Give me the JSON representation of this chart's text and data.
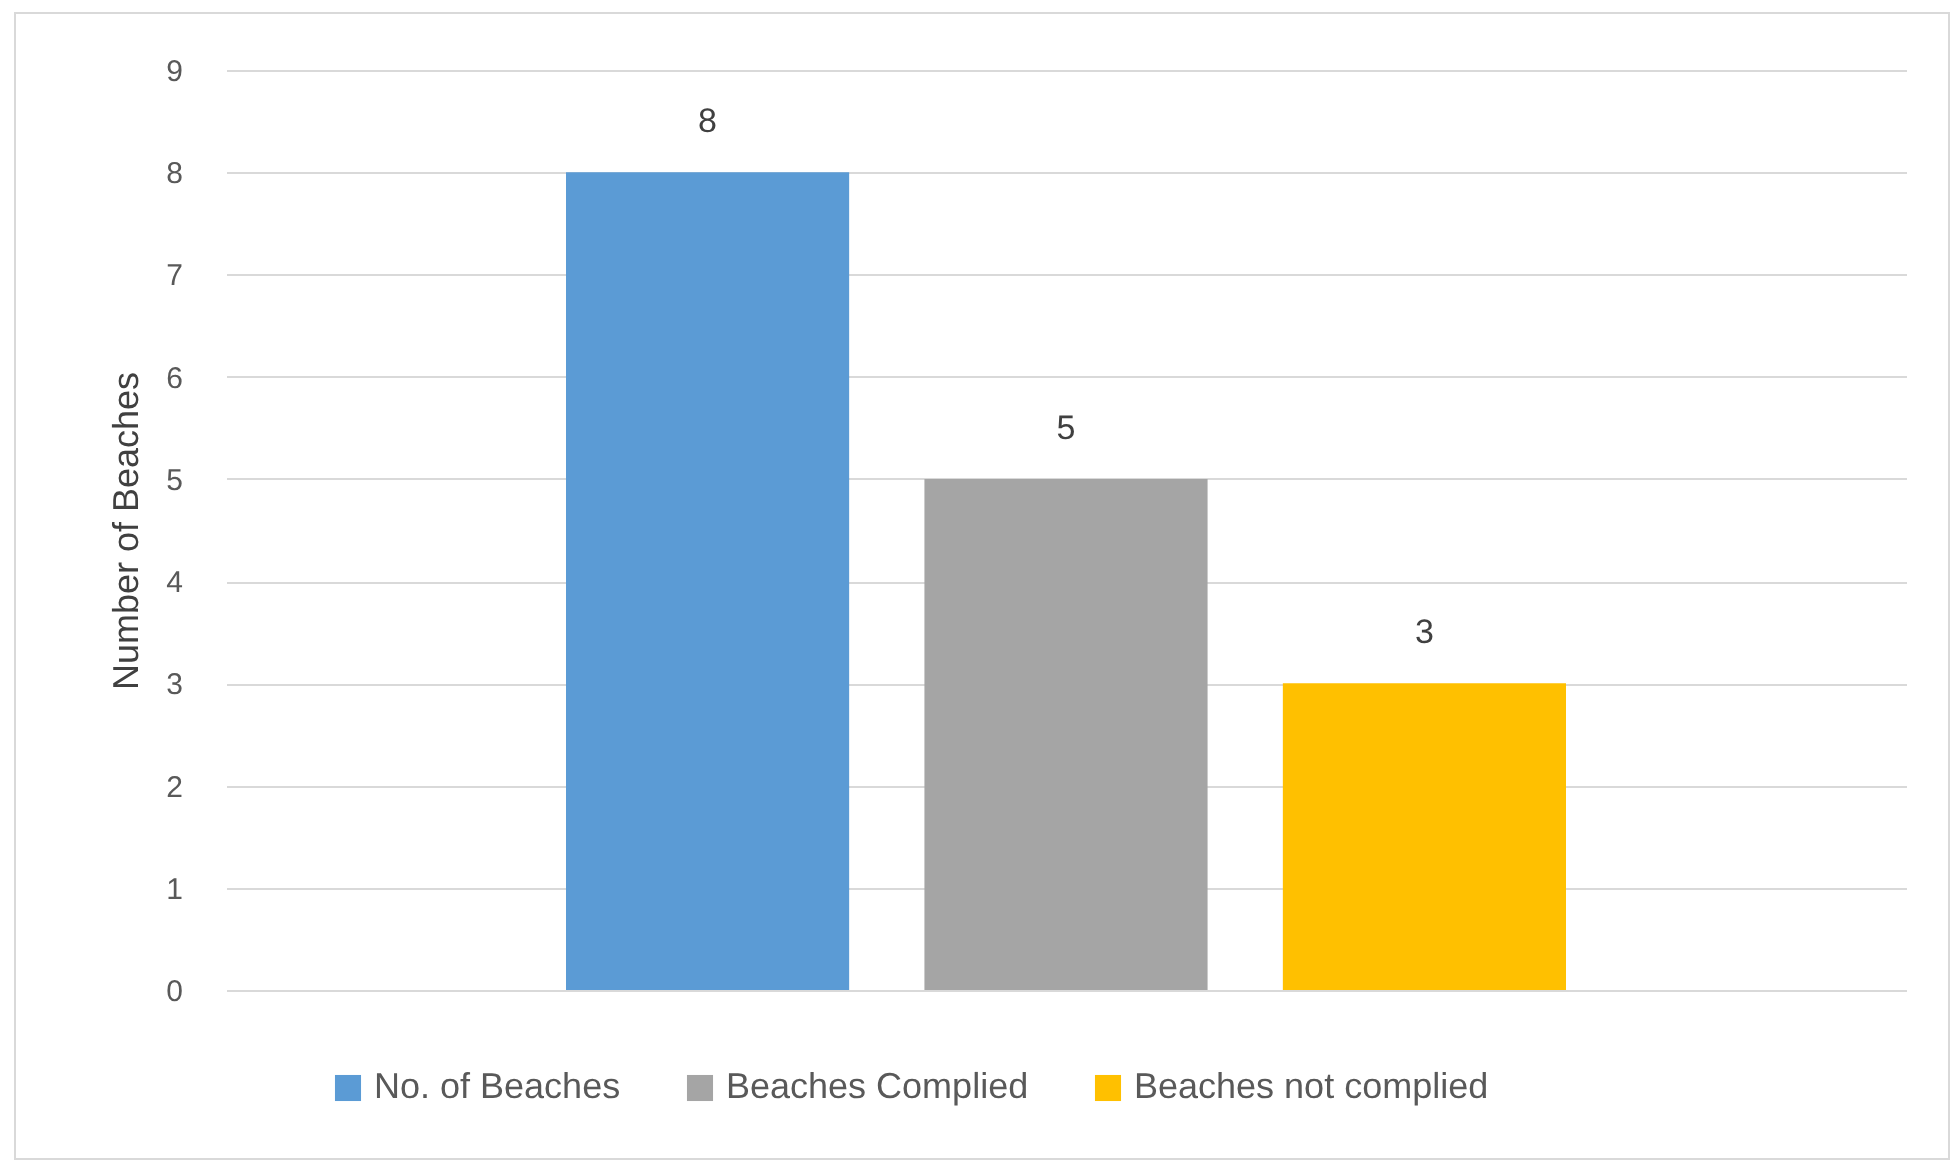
{
  "chart_data": {
    "type": "bar",
    "ylabel": "Number of Beaches",
    "categories": [
      null
    ],
    "series": [
      {
        "name": "No. of Beaches",
        "color": "#5b9bd5",
        "values": [
          8
        ]
      },
      {
        "name": "Beaches Complied",
        "color": "#a5a5a5",
        "values": [
          5
        ]
      },
      {
        "name": "Beaches not complied",
        "color": "#ffc000",
        "values": [
          3
        ]
      }
    ],
    "ylim": [
      0,
      9
    ],
    "yticks": [
      0,
      1,
      2,
      3,
      4,
      5,
      6,
      7,
      8,
      9
    ],
    "grid": "y",
    "legend": "bottom",
    "data_labels": true
  }
}
